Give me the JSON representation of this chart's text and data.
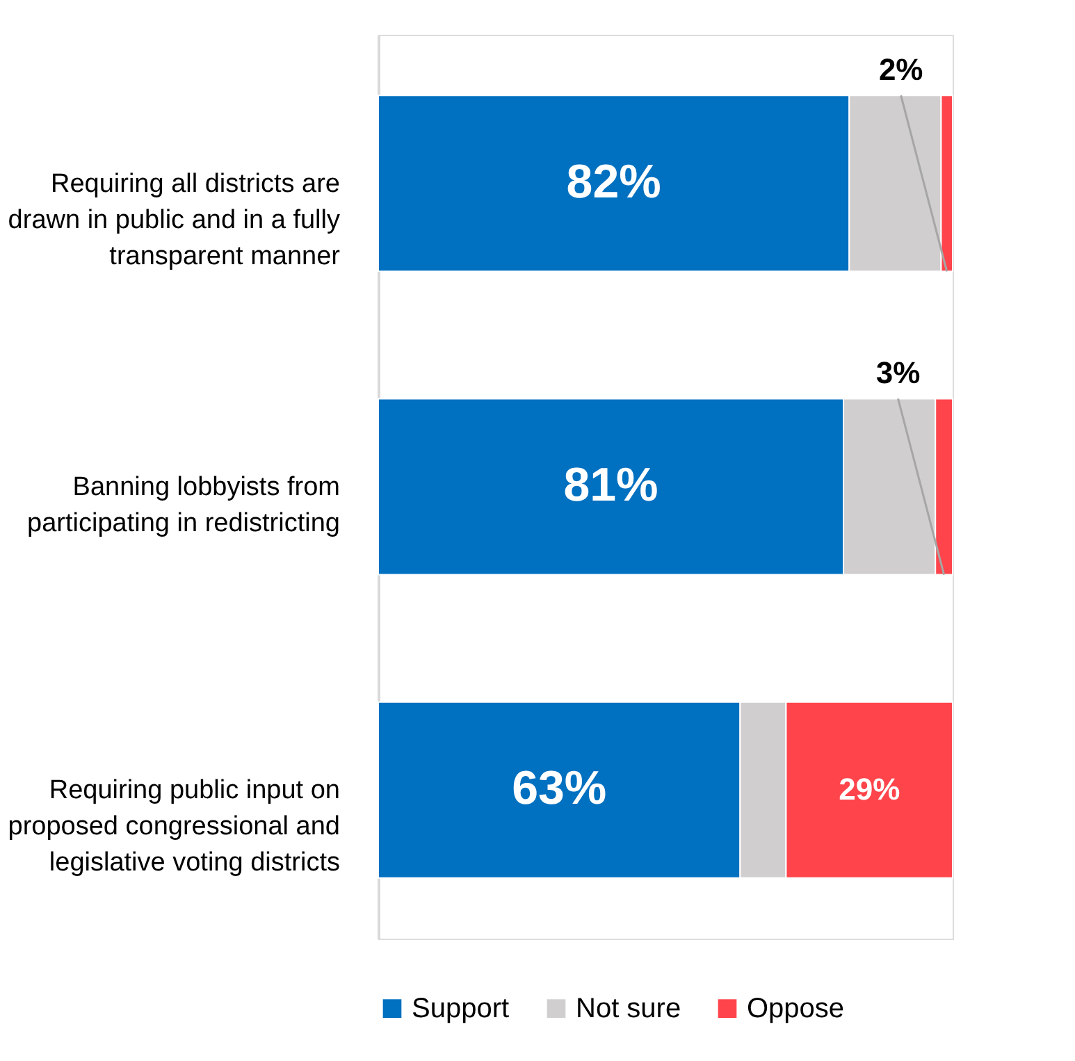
{
  "chart_data": {
    "type": "bar",
    "orientation": "horizontal",
    "stacked": true,
    "categories": [
      "Requiring all districts are drawn in public and in a fully transparent manner",
      "Banning lobbyists from participating in redistricting",
      "Requiring public input on proposed congressional and legislative voting districts"
    ],
    "series": [
      {
        "name": "Support",
        "color": "#0070c0",
        "values": [
          82,
          81,
          63
        ],
        "value_labels": [
          "82%",
          "81%",
          "63%"
        ]
      },
      {
        "name": "Not sure",
        "color": "#d0cece",
        "values": [
          16,
          16,
          8
        ],
        "value_labels": [
          null,
          null,
          null
        ]
      },
      {
        "name": "Oppose",
        "color": "#ff444b",
        "values": [
          2,
          3,
          29
        ],
        "value_labels": [
          "2%",
          "3%",
          "29%"
        ]
      }
    ],
    "xlim": [
      0,
      100
    ],
    "tick_labels": "y",
    "grid": false,
    "legend": "bottom"
  }
}
